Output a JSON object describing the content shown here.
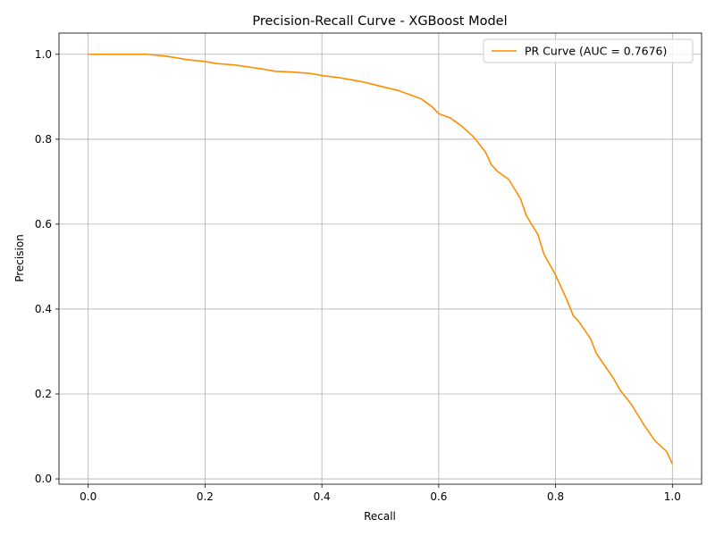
{
  "chart_data": {
    "type": "line",
    "title": "Precision-Recall Curve - XGBoost Model",
    "xlabel": "Recall",
    "ylabel": "Precision",
    "xlim": [
      -0.05,
      1.05
    ],
    "ylim": [
      -0.0125,
      1.05
    ],
    "xticks": [
      0.0,
      0.2,
      0.4,
      0.6,
      0.8,
      1.0
    ],
    "xtick_labels": [
      "0.0",
      "0.2",
      "0.4",
      "0.6",
      "0.8",
      "1.0"
    ],
    "yticks": [
      0.0,
      0.2,
      0.4,
      0.6,
      0.8,
      1.0
    ],
    "ytick_labels": [
      "0.0",
      "0.2",
      "0.4",
      "0.6",
      "0.8",
      "1.0"
    ],
    "grid": true,
    "legend_position": "top-right",
    "series": [
      {
        "name": "PR Curve (AUC = 0.7676)",
        "color": "#ff8c00",
        "x": [
          0.0,
          0.05,
          0.1,
          0.13,
          0.15,
          0.17,
          0.2,
          0.22,
          0.25,
          0.28,
          0.3,
          0.32,
          0.35,
          0.38,
          0.4,
          0.43,
          0.45,
          0.47,
          0.5,
          0.53,
          0.55,
          0.57,
          0.59,
          0.6,
          0.62,
          0.64,
          0.66,
          0.68,
          0.69,
          0.7,
          0.72,
          0.74,
          0.75,
          0.77,
          0.78,
          0.79,
          0.8,
          0.82,
          0.83,
          0.84,
          0.86,
          0.87,
          0.89,
          0.9,
          0.91,
          0.93,
          0.95,
          0.97,
          0.99,
          1.0
        ],
        "y": [
          1.0,
          1.0,
          1.0,
          0.996,
          0.992,
          0.987,
          0.983,
          0.978,
          0.975,
          0.969,
          0.965,
          0.96,
          0.958,
          0.955,
          0.95,
          0.945,
          0.94,
          0.935,
          0.925,
          0.915,
          0.905,
          0.895,
          0.875,
          0.86,
          0.85,
          0.83,
          0.805,
          0.77,
          0.74,
          0.725,
          0.705,
          0.66,
          0.62,
          0.575,
          0.53,
          0.505,
          0.48,
          0.42,
          0.385,
          0.37,
          0.33,
          0.295,
          0.255,
          0.235,
          0.21,
          0.175,
          0.13,
          0.09,
          0.065,
          0.035
        ]
      }
    ]
  }
}
